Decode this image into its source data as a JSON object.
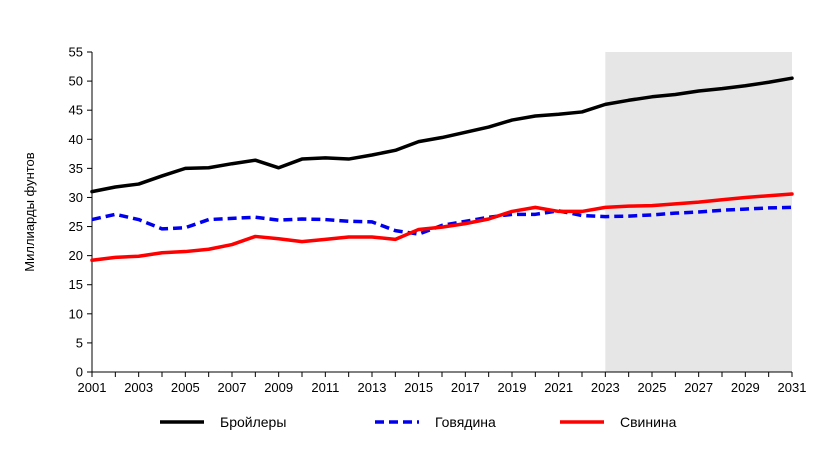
{
  "chart_data": {
    "type": "line",
    "title": "",
    "xlabel": "",
    "ylabel": "Миллиарды фунтов",
    "xlim": [
      2001,
      2031
    ],
    "ylim": [
      0,
      55
    ],
    "y_ticks": [
      "0",
      "5",
      "10",
      "15",
      "20",
      "25",
      "30",
      "35",
      "40",
      "45",
      "50",
      "55"
    ],
    "x_ticks": [
      "2001",
      "2003",
      "2005",
      "2007",
      "2009",
      "2011",
      "2013",
      "2015",
      "2017",
      "2019",
      "2021",
      "2023",
      "2025",
      "2027",
      "2029",
      "2031"
    ],
    "grid": false,
    "legend_position": "bottom",
    "projection_shading": {
      "start": 2023,
      "end": 2031,
      "color": "#e6e6e6"
    },
    "x": [
      2001,
      2002,
      2003,
      2004,
      2005,
      2006,
      2007,
      2008,
      2009,
      2010,
      2011,
      2012,
      2013,
      2014,
      2015,
      2016,
      2017,
      2018,
      2019,
      2020,
      2021,
      2022,
      2023,
      2024,
      2025,
      2026,
      2027,
      2028,
      2029,
      2030,
      2031
    ],
    "series": [
      {
        "name": "Бройлеры",
        "color": "#000000",
        "style": "solid",
        "values": [
          31.0,
          31.8,
          32.3,
          33.7,
          35.0,
          35.1,
          35.8,
          36.4,
          35.1,
          36.6,
          36.8,
          36.6,
          37.3,
          38.1,
          39.6,
          40.3,
          41.2,
          42.1,
          43.3,
          44.0,
          44.3,
          44.7,
          46.0,
          46.7,
          47.3,
          47.7,
          48.3,
          48.7,
          49.2,
          49.8,
          50.5
        ]
      },
      {
        "name": "Говядина",
        "color": "#0000ee",
        "style": "dashed",
        "values": [
          26.2,
          27.1,
          26.2,
          24.6,
          24.8,
          26.2,
          26.4,
          26.6,
          26.1,
          26.3,
          26.2,
          25.9,
          25.8,
          24.3,
          23.7,
          25.2,
          25.9,
          26.6,
          27.1,
          27.1,
          27.7,
          26.9,
          26.7,
          26.8,
          27.0,
          27.3,
          27.5,
          27.8,
          28.0,
          28.2,
          28.3
        ]
      },
      {
        "name": "Свинина",
        "color": "#ff0000",
        "style": "solid",
        "values": [
          19.2,
          19.7,
          19.9,
          20.5,
          20.7,
          21.1,
          21.9,
          23.3,
          22.9,
          22.4,
          22.8,
          23.2,
          23.2,
          22.8,
          24.5,
          24.9,
          25.5,
          26.3,
          27.6,
          28.3,
          27.6,
          27.6,
          28.3,
          28.5,
          28.6,
          28.9,
          29.2,
          29.6,
          30.0,
          30.3,
          30.6
        ]
      }
    ]
  }
}
